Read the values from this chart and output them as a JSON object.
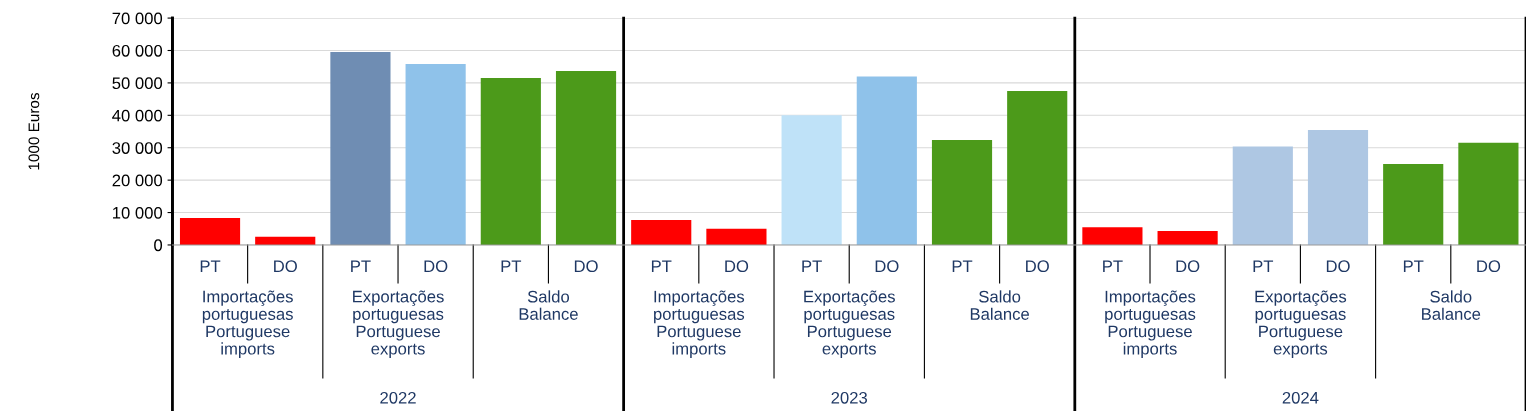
{
  "chart_data": {
    "type": "bar",
    "ylabel": "1000 Euros",
    "categories": [
      "PT",
      "DO",
      "PT",
      "DO",
      "PT",
      "DO",
      "PT",
      "DO",
      "PT",
      "DO",
      "PT",
      "DO",
      "PT",
      "DO",
      "PT",
      "DO",
      "PT",
      "DO"
    ],
    "values": [
      8300,
      2500,
      59500,
      55800,
      51500,
      53700,
      7700,
      5000,
      40000,
      52000,
      32400,
      47500,
      5500,
      4300,
      30400,
      35500,
      25000,
      31500
    ],
    "colors": [
      "#ff0000",
      "#ff0000",
      "#6f8db3",
      "#8fc2ea",
      "#4c9a1a",
      "#4c9a1a",
      "#ff0000",
      "#ff0000",
      "#bfe2f8",
      "#8fc2ea",
      "#4c9a1a",
      "#4c9a1a",
      "#ff0000",
      "#ff0000",
      "#aec7e3",
      "#aec7e3",
      "#4c9a1a",
      "#4c9a1a"
    ],
    "annotations": [
      "Importações\nportuguesas\nPortuguese\nimports",
      "Exportações\nportuguesas\nPortuguese\nexports",
      "Saldo\nBalance",
      "Importações\nportuguesas\nPortuguese\nimports",
      "Exportações\nportuguesas\nPortuguese\nexports",
      "Saldo\nBalance",
      "Importações\nportuguesas\nPortuguese\nimports",
      "Exportações\nportuguesas\nPortuguese\nexports",
      "Saldo\nBalance",
      "2022",
      "2023",
      "2024"
    ],
    "ylim": [
      0,
      70000
    ],
    "yticks": [
      {
        "value": 0,
        "label": "0"
      },
      {
        "value": 10000,
        "label": "10 000"
      },
      {
        "value": 20000,
        "label": "20 000"
      },
      {
        "value": 30000,
        "label": "30 000"
      },
      {
        "value": 40000,
        "label": "40 000"
      },
      {
        "value": 50000,
        "label": "50 000"
      },
      {
        "value": 60000,
        "label": "60 000"
      },
      {
        "value": 70000,
        "label": "70 000"
      }
    ],
    "grid": "y",
    "legend": false
  }
}
